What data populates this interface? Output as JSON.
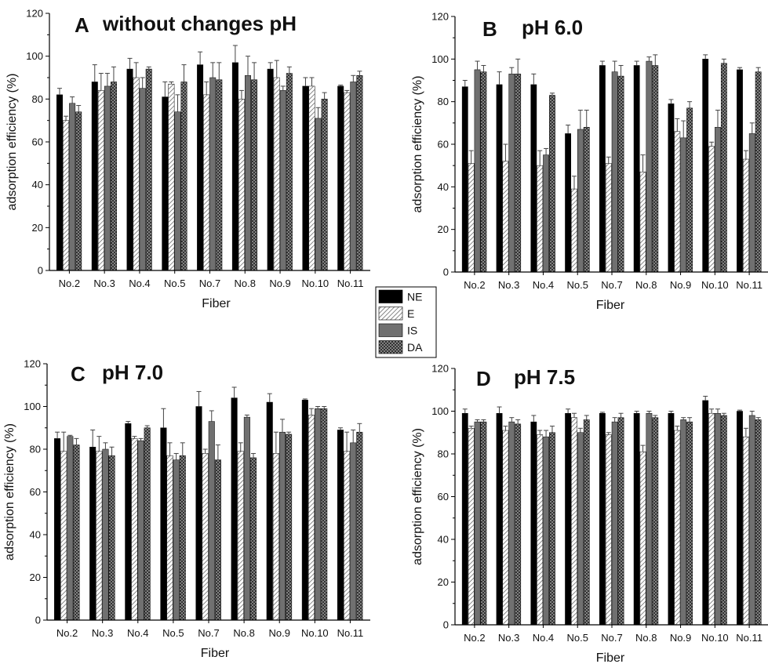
{
  "chart_data": [
    {
      "panel": "A",
      "title": "without changes pH",
      "type": "bar",
      "xlabel": "Fiber",
      "ylabel": "adsorption efficiency (%)",
      "ylim": [
        0,
        120
      ],
      "yticks": [
        0,
        20,
        40,
        60,
        80,
        100,
        120
      ],
      "categories": [
        "No.2",
        "No.3",
        "No.4",
        "No.5",
        "No.7",
        "No.8",
        "No.9",
        "No.10",
        "No.11"
      ],
      "series": [
        {
          "name": "NE",
          "values": [
            82,
            88,
            94,
            81,
            96,
            97,
            94,
            86,
            86
          ],
          "errors": [
            3,
            8,
            5,
            7,
            6,
            8,
            3,
            4,
            0.5
          ]
        },
        {
          "name": "E",
          "values": [
            70,
            84,
            90,
            87,
            82,
            80,
            90,
            86,
            83
          ],
          "errors": [
            2,
            8,
            7,
            1,
            6,
            4,
            8,
            4,
            1
          ]
        },
        {
          "name": "IS",
          "values": [
            78,
            86,
            85,
            74,
            90,
            91,
            84,
            71,
            88
          ],
          "errors": [
            3,
            6,
            5,
            8,
            7,
            9,
            2,
            5,
            3
          ]
        },
        {
          "name": "DA",
          "values": [
            74,
            88,
            94,
            88,
            89,
            89,
            92,
            80,
            91
          ],
          "errors": [
            3,
            7,
            1,
            8,
            8,
            8,
            3,
            3,
            2
          ]
        }
      ],
      "grid": false
    },
    {
      "panel": "B",
      "title": "pH 6.0",
      "type": "bar",
      "xlabel": "Fiber",
      "ylabel": "adsorption efficiency (%)",
      "ylim": [
        0,
        120
      ],
      "yticks": [
        0,
        20,
        40,
        60,
        80,
        100,
        120
      ],
      "categories": [
        "No.2",
        "No.3",
        "No.4",
        "No.5",
        "No.7",
        "No.8",
        "No.9",
        "No.10",
        "No.11"
      ],
      "series": [
        {
          "name": "NE",
          "values": [
            87,
            88,
            88,
            65,
            97,
            97,
            79,
            100,
            95
          ],
          "errors": [
            3,
            6,
            5,
            4,
            2,
            2,
            2,
            2,
            1
          ]
        },
        {
          "name": "E",
          "values": [
            51,
            52,
            50,
            39,
            51,
            47,
            66,
            59,
            53
          ],
          "errors": [
            6,
            8,
            7,
            6,
            3,
            8,
            6,
            2,
            4
          ]
        },
        {
          "name": "IS",
          "values": [
            95,
            93,
            55,
            67,
            94,
            99,
            63,
            68,
            65
          ],
          "errors": [
            4,
            3,
            3,
            9,
            5,
            2,
            8,
            8,
            5
          ]
        },
        {
          "name": "DA",
          "values": [
            94,
            93,
            83,
            68,
            92,
            97,
            77,
            98,
            94
          ],
          "errors": [
            3,
            7,
            1,
            8,
            5,
            5,
            3,
            2,
            2
          ]
        }
      ],
      "grid": false
    },
    {
      "panel": "C",
      "title": "pH 7.0",
      "type": "bar",
      "xlabel": "Fiber",
      "ylabel": "adsorption efficiency (%)",
      "ylim": [
        0,
        120
      ],
      "yticks": [
        0,
        20,
        40,
        60,
        80,
        100,
        120
      ],
      "categories": [
        "No.2",
        "No.3",
        "No.4",
        "No.5",
        "No.7",
        "No.8",
        "No.9",
        "No.10",
        "No.11"
      ],
      "series": [
        {
          "name": "NE",
          "values": [
            85,
            81,
            92,
            90,
            100,
            104,
            102,
            103,
            89
          ],
          "errors": [
            3,
            8,
            1,
            9,
            7,
            5,
            4,
            0.5,
            1
          ]
        },
        {
          "name": "E",
          "values": [
            79,
            79,
            85,
            77,
            78,
            79,
            78,
            96,
            79
          ],
          "errors": [
            9,
            7,
            1,
            6,
            2,
            4,
            10,
            3,
            9
          ]
        },
        {
          "name": "IS",
          "values": [
            86,
            80,
            84,
            75,
            93,
            95,
            88,
            99,
            83
          ],
          "errors": [
            0.5,
            3,
            1,
            3,
            5,
            1,
            6,
            1,
            6
          ]
        },
        {
          "name": "DA",
          "values": [
            82,
            77,
            90,
            77,
            75,
            76,
            87,
            99,
            88
          ],
          "errors": [
            3,
            4,
            1,
            6,
            7,
            2,
            1,
            1,
            4
          ]
        }
      ],
      "grid": false
    },
    {
      "panel": "D",
      "title": "pH 7.5",
      "type": "bar",
      "xlabel": "Fiber",
      "ylabel": "adsorption efficiency (%)",
      "ylim": [
        0,
        120
      ],
      "yticks": [
        0,
        20,
        40,
        60,
        80,
        100,
        120
      ],
      "categories": [
        "No.2",
        "No.3",
        "No.4",
        "No.5",
        "No.7",
        "No.8",
        "No.9",
        "No.10",
        "No.11"
      ],
      "series": [
        {
          "name": "NE",
          "values": [
            99,
            99,
            95,
            99,
            99,
            99,
            99,
            105,
            100
          ],
          "errors": [
            2,
            3,
            3,
            2,
            0.5,
            1,
            1,
            2,
            0.5
          ]
        },
        {
          "name": "E",
          "values": [
            92,
            91,
            89,
            97,
            89,
            81,
            91,
            99,
            88
          ],
          "errors": [
            1,
            2,
            2,
            2,
            1,
            3,
            2,
            2,
            4
          ]
        },
        {
          "name": "IS",
          "values": [
            95,
            95,
            88,
            90,
            95,
            99,
            96,
            99,
            98
          ],
          "errors": [
            1,
            2,
            3,
            2,
            2,
            1,
            1,
            2,
            2
          ]
        },
        {
          "name": "DA",
          "values": [
            95,
            94,
            90,
            96,
            97,
            97,
            95,
            98,
            96
          ],
          "errors": [
            1,
            2,
            3,
            2,
            2,
            1,
            2,
            1,
            1
          ]
        }
      ],
      "grid": false
    }
  ],
  "legend": {
    "placement": "center",
    "entries": [
      {
        "name": "NE",
        "fill": "solid-black"
      },
      {
        "name": "E",
        "fill": "diagonal-hatch"
      },
      {
        "name": "IS",
        "fill": "solid-gray"
      },
      {
        "name": "DA",
        "fill": "crosshatch"
      }
    ]
  },
  "colors": {
    "NE": "#000000",
    "E_background": "#ffffff",
    "E_hatch": "#555555",
    "IS": "#707070",
    "DA_background": "#9a9a9a",
    "DA_hatch": "#222222",
    "axis": "#000000"
  }
}
